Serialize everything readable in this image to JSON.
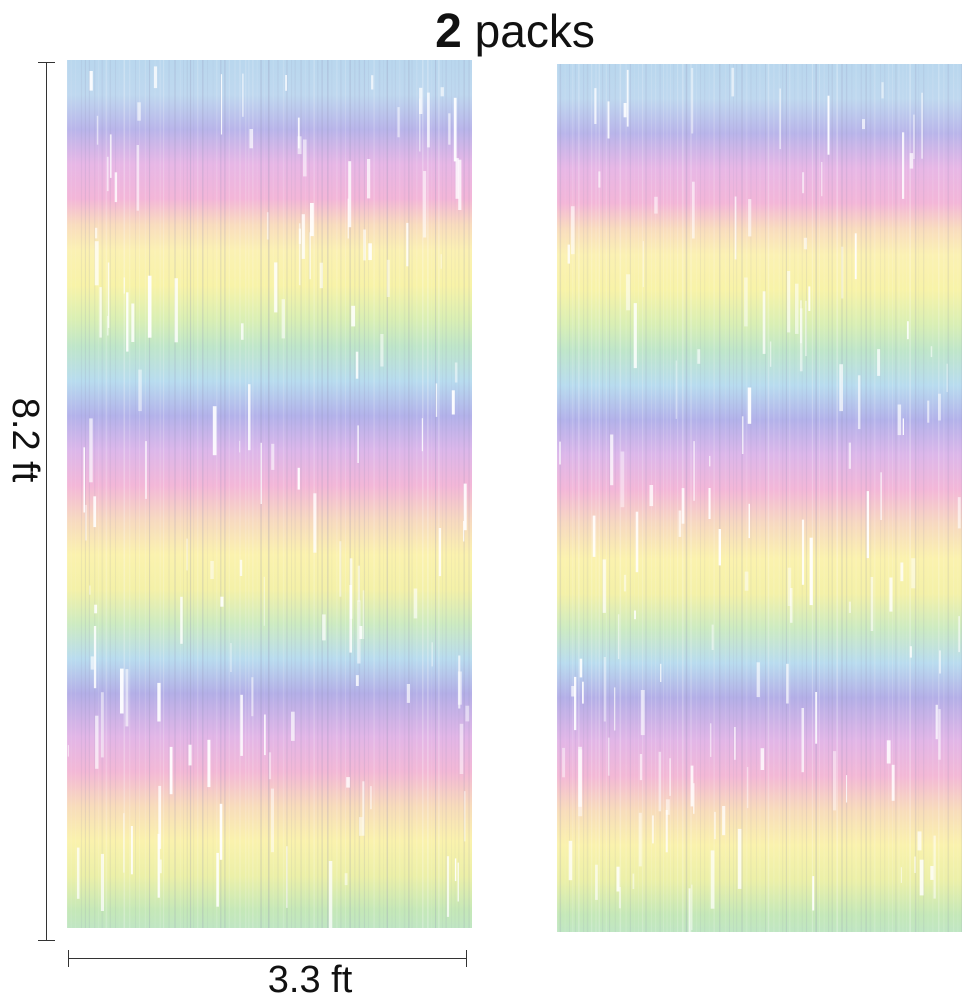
{
  "headline": {
    "quantity": "2",
    "unit": "packs"
  },
  "dimensions": {
    "height_label": "8.2 ft",
    "width_label": "3.3 ft"
  },
  "product": {
    "curtain_count": 2,
    "stripe_colors": [
      "#b9d7ee",
      "#b9b5ea",
      "#f3b6d8",
      "#fbf1b3",
      "#bfe6c9"
    ]
  }
}
